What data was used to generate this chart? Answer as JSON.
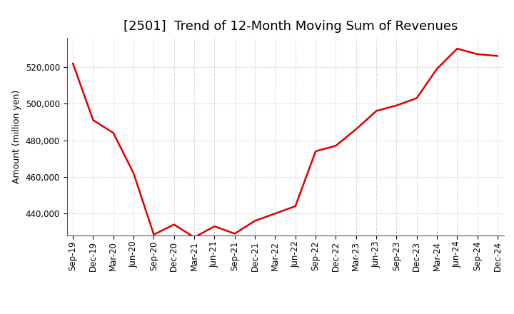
{
  "title": "[2501]  Trend of 12-Month Moving Sum of Revenues",
  "ylabel": "Amount (million yen)",
  "line_color": "#dd0000",
  "background_color": "#ffffff",
  "grid_color": "#999999",
  "xlabels": [
    "Sep-19",
    "Dec-19",
    "Mar-20",
    "Jun-20",
    "Sep-20",
    "Dec-20",
    "Mar-21",
    "Jun-21",
    "Sep-21",
    "Dec-21",
    "Mar-22",
    "Jun-22",
    "Sep-22",
    "Dec-22",
    "Mar-23",
    "Jun-23",
    "Sep-23",
    "Dec-23",
    "Mar-24",
    "Jun-24",
    "Sep-24",
    "Dec-24"
  ],
  "values": [
    522000,
    491000,
    484000,
    462000,
    428500,
    434000,
    427000,
    433000,
    429000,
    436000,
    440000,
    444000,
    474000,
    477000,
    486000,
    496000,
    499000,
    503000,
    519000,
    530000,
    527000,
    526000
  ],
  "ylim": [
    428000,
    536000
  ],
  "yticks": [
    440000,
    460000,
    480000,
    500000,
    520000
  ],
  "title_fontsize": 13,
  "ylabel_fontsize": 9,
  "tick_fontsize": 8.5
}
